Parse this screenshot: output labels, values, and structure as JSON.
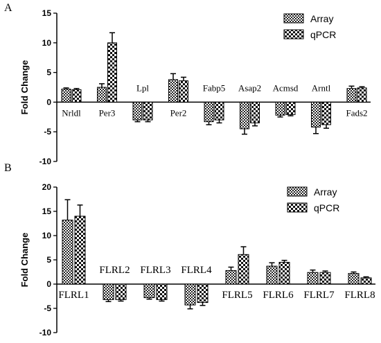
{
  "chart_data": [
    {
      "panel": "A",
      "type": "bar",
      "ylabel": "Fold Change",
      "ylim": [
        -10,
        15
      ],
      "yticks": [
        "15",
        "10",
        "5",
        "0",
        "-5",
        "-10"
      ],
      "categories": [
        "Nrldl",
        "Per3",
        "Lpl",
        "Per2",
        "Fabp5",
        "Asap2",
        "Acmsd",
        "Arntl",
        "Fads2"
      ],
      "label_pos": [
        "below",
        "below",
        "above",
        "below",
        "above",
        "above",
        "above",
        "above",
        "below"
      ],
      "series": [
        {
          "name": "Array",
          "values": [
            2.2,
            2.5,
            -3.0,
            3.8,
            -3.3,
            -4.5,
            -2.2,
            -4.2,
            2.3
          ],
          "errors": [
            0.2,
            0.6,
            0.3,
            1.0,
            0.5,
            0.9,
            0.3,
            1.1,
            0.4
          ]
        },
        {
          "name": "qPCR",
          "values": [
            2.1,
            10.0,
            -3.0,
            3.6,
            -3.0,
            -3.5,
            -2.1,
            -3.8,
            2.4
          ],
          "errors": [
            0.2,
            1.7,
            0.3,
            0.6,
            0.5,
            0.5,
            0.2,
            0.6,
            0.2
          ]
        }
      ],
      "legend_position": "top-right",
      "grid": false
    },
    {
      "panel": "B",
      "type": "bar",
      "ylabel": "Fold Change",
      "ylim": [
        -10,
        20
      ],
      "yticks": [
        "20",
        "15",
        "10",
        "5",
        "0",
        "-5",
        "-10"
      ],
      "categories": [
        "FLRL1",
        "FLRL2",
        "FLRL3",
        "FLRL4",
        "FLRL5",
        "FLRL6",
        "FLRL7",
        "FLRL8"
      ],
      "label_pos": [
        "below",
        "above",
        "above",
        "above",
        "below",
        "below",
        "below",
        "below"
      ],
      "series": [
        {
          "name": "Array",
          "values": [
            13.2,
            -3.2,
            -2.8,
            -4.3,
            2.8,
            3.7,
            2.4,
            2.2
          ],
          "errors": [
            4.2,
            0.4,
            0.3,
            0.8,
            0.7,
            0.7,
            0.5,
            0.3
          ]
        },
        {
          "name": "qPCR",
          "values": [
            14.0,
            -3.2,
            -3.2,
            -3.8,
            6.1,
            4.5,
            2.4,
            1.3
          ],
          "errors": [
            2.3,
            0.3,
            0.3,
            0.6,
            1.6,
            0.4,
            0.3,
            0.2
          ]
        }
      ],
      "legend_position": "top-right",
      "grid": false
    }
  ]
}
